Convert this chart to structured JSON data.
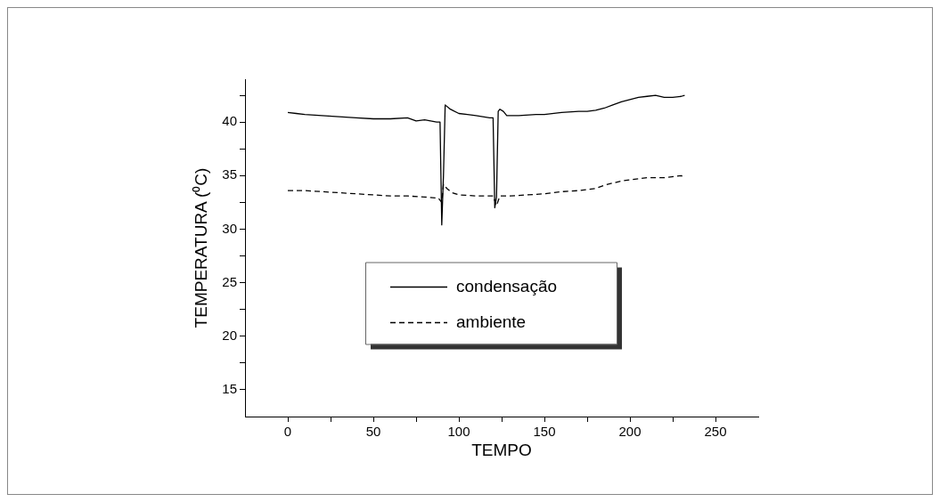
{
  "chart_data": {
    "type": "line",
    "xlabel": "TEMPO",
    "ylabel": "TEMPERATURA (⁰C)",
    "xlim": [
      -25,
      275
    ],
    "ylim": [
      12.5,
      44
    ],
    "xticks": [
      0,
      {
        "value": 25,
        "label": null
      },
      50,
      {
        "value": 75,
        "label": null
      },
      100,
      {
        "value": 125,
        "label": null
      },
      150,
      {
        "value": 175,
        "label": null
      },
      200,
      {
        "value": 225,
        "label": null
      },
      250
    ],
    "yticks": [
      15,
      {
        "value": 17.5,
        "label": null
      },
      20,
      {
        "value": 22.5,
        "label": null
      },
      25,
      {
        "value": 27.5,
        "label": null
      },
      30,
      {
        "value": 32.5,
        "label": null
      },
      35,
      {
        "value": 37.5,
        "label": null
      },
      40,
      {
        "value": 42.5,
        "label": null
      }
    ],
    "grid": false,
    "legend": "center",
    "marker": "none",
    "series": [
      {
        "name": "condensação",
        "color": "#000000",
        "line_style": "solid",
        "x": [
          0,
          5,
          10,
          20,
          30,
          40,
          50,
          60,
          70,
          75,
          80,
          87,
          89,
          90,
          91,
          92,
          95,
          100,
          105,
          110,
          118,
          120,
          121,
          122,
          123,
          124,
          126,
          128,
          135,
          145,
          150,
          160,
          170,
          175,
          180,
          185,
          190,
          195,
          200,
          205,
          210,
          215,
          220,
          225,
          230,
          232
        ],
        "values": [
          40.9,
          40.8,
          40.7,
          40.6,
          40.5,
          40.4,
          40.3,
          40.3,
          40.4,
          40.1,
          40.2,
          40.0,
          40.0,
          30.4,
          35.0,
          41.6,
          41.2,
          40.8,
          40.7,
          40.6,
          40.4,
          40.4,
          32.0,
          33.0,
          41.0,
          41.2,
          41.0,
          40.6,
          40.6,
          40.7,
          40.7,
          40.9,
          41.0,
          41.0,
          41.1,
          41.3,
          41.6,
          41.9,
          42.1,
          42.3,
          42.4,
          42.5,
          42.3,
          42.3,
          42.4,
          42.5
        ]
      },
      {
        "name": "ambiente",
        "color": "#000000",
        "line_style": "dashed",
        "x": [
          0,
          10,
          20,
          30,
          40,
          50,
          60,
          70,
          80,
          88,
          90,
          91,
          93,
          96,
          100,
          110,
          120,
          122,
          124,
          130,
          140,
          150,
          160,
          170,
          175,
          180,
          185,
          190,
          195,
          200,
          210,
          220,
          230,
          232
        ],
        "values": [
          33.6,
          33.6,
          33.5,
          33.4,
          33.3,
          33.2,
          33.1,
          33.1,
          33.0,
          32.9,
          32.5,
          34.2,
          33.8,
          33.4,
          33.2,
          33.1,
          33.1,
          32.2,
          33.1,
          33.1,
          33.2,
          33.3,
          33.5,
          33.6,
          33.7,
          33.8,
          34.1,
          34.3,
          34.5,
          34.6,
          34.8,
          34.8,
          35.0,
          34.8
        ]
      }
    ]
  }
}
